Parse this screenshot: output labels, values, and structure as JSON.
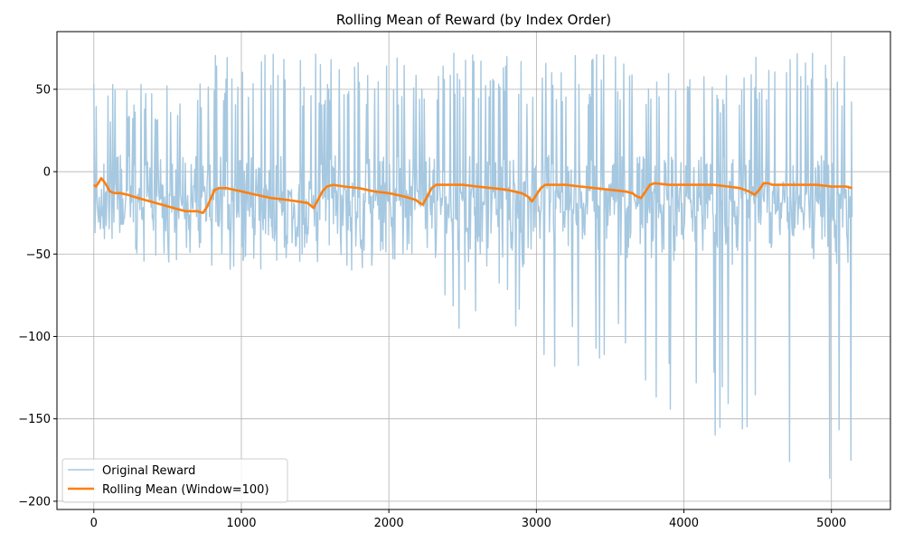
{
  "chart_data": {
    "type": "line",
    "title": "Rolling Mean of Reward (by Index Order)",
    "xlabel": "",
    "ylabel": "",
    "xlim": [
      -250,
      5400
    ],
    "ylim": [
      -205,
      85
    ],
    "x_ticks": [
      0,
      1000,
      2000,
      3000,
      4000,
      5000
    ],
    "y_ticks": [
      50,
      0,
      -50,
      -100,
      -150,
      -200
    ],
    "grid": true,
    "legend_position": "lower-left",
    "colors": {
      "original": "#a6c8e0",
      "rolling": "#ff7f0e",
      "grid": "#b0b0b0",
      "axes": "#000000"
    },
    "series": [
      {
        "name": "Original Reward",
        "style": "oscillating-band",
        "x_range": [
          0,
          5140
        ],
        "segments": [
          {
            "x": [
              0,
              90
            ],
            "high": 55,
            "low": -40
          },
          {
            "x": [
              90,
              750
            ],
            "high": 55,
            "low": -60
          },
          {
            "x": [
              750,
              1480
            ],
            "high": 72,
            "low": -60
          },
          {
            "x": [
              1480,
              2210
            ],
            "high": 72,
            "low": -60
          },
          {
            "x": [
              2210,
              2930
            ],
            "high": 72,
            "low": -95
          },
          {
            "x": [
              2930,
              3680
            ],
            "high": 72,
            "low": -128
          },
          {
            "x": [
              3680,
              4410
            ],
            "high": 60,
            "low": -160
          },
          {
            "x": [
              4410,
              5140
            ],
            "high": 72,
            "low": -192
          }
        ]
      },
      {
        "name": "Rolling Mean (Window=100)",
        "x": [
          0,
          15,
          30,
          50,
          70,
          90,
          110,
          140,
          180,
          230,
          300,
          380,
          460,
          540,
          620,
          700,
          740,
          770,
          800,
          820,
          850,
          900,
          950,
          1000,
          1100,
          1200,
          1300,
          1380,
          1450,
          1490,
          1520,
          1550,
          1580,
          1620,
          1700,
          1800,
          1900,
          2000,
          2100,
          2180,
          2210,
          2230,
          2260,
          2290,
          2320,
          2400,
          2500,
          2600,
          2700,
          2800,
          2900,
          2940,
          2970,
          3000,
          3030,
          3060,
          3100,
          3200,
          3300,
          3400,
          3500,
          3600,
          3650,
          3680,
          3710,
          3740,
          3770,
          3800,
          3900,
          4000,
          4100,
          4200,
          4300,
          4380,
          4440,
          4480,
          4510,
          4540,
          4570,
          4600,
          4700,
          4800,
          4900,
          5000,
          5100,
          5140
        ],
        "values": [
          -8,
          -9,
          -7,
          -4,
          -6,
          -9,
          -12,
          -13,
          -13,
          -14,
          -16,
          -18,
          -20,
          -22,
          -24,
          -24,
          -25,
          -21,
          -15,
          -11,
          -10,
          -10,
          -11,
          -12,
          -14,
          -16,
          -17,
          -18,
          -19,
          -22,
          -17,
          -12,
          -9,
          -8,
          -9,
          -10,
          -12,
          -13,
          -15,
          -17,
          -19,
          -20,
          -15,
          -10,
          -8,
          -8,
          -8,
          -9,
          -10,
          -11,
          -13,
          -15,
          -18,
          -14,
          -10,
          -8,
          -8,
          -8,
          -9,
          -10,
          -11,
          -12,
          -13,
          -15,
          -16,
          -12,
          -8,
          -7,
          -8,
          -8,
          -8,
          -8,
          -9,
          -10,
          -12,
          -14,
          -11,
          -7,
          -7,
          -8,
          -8,
          -8,
          -8,
          -9,
          -9,
          -10
        ]
      }
    ]
  }
}
